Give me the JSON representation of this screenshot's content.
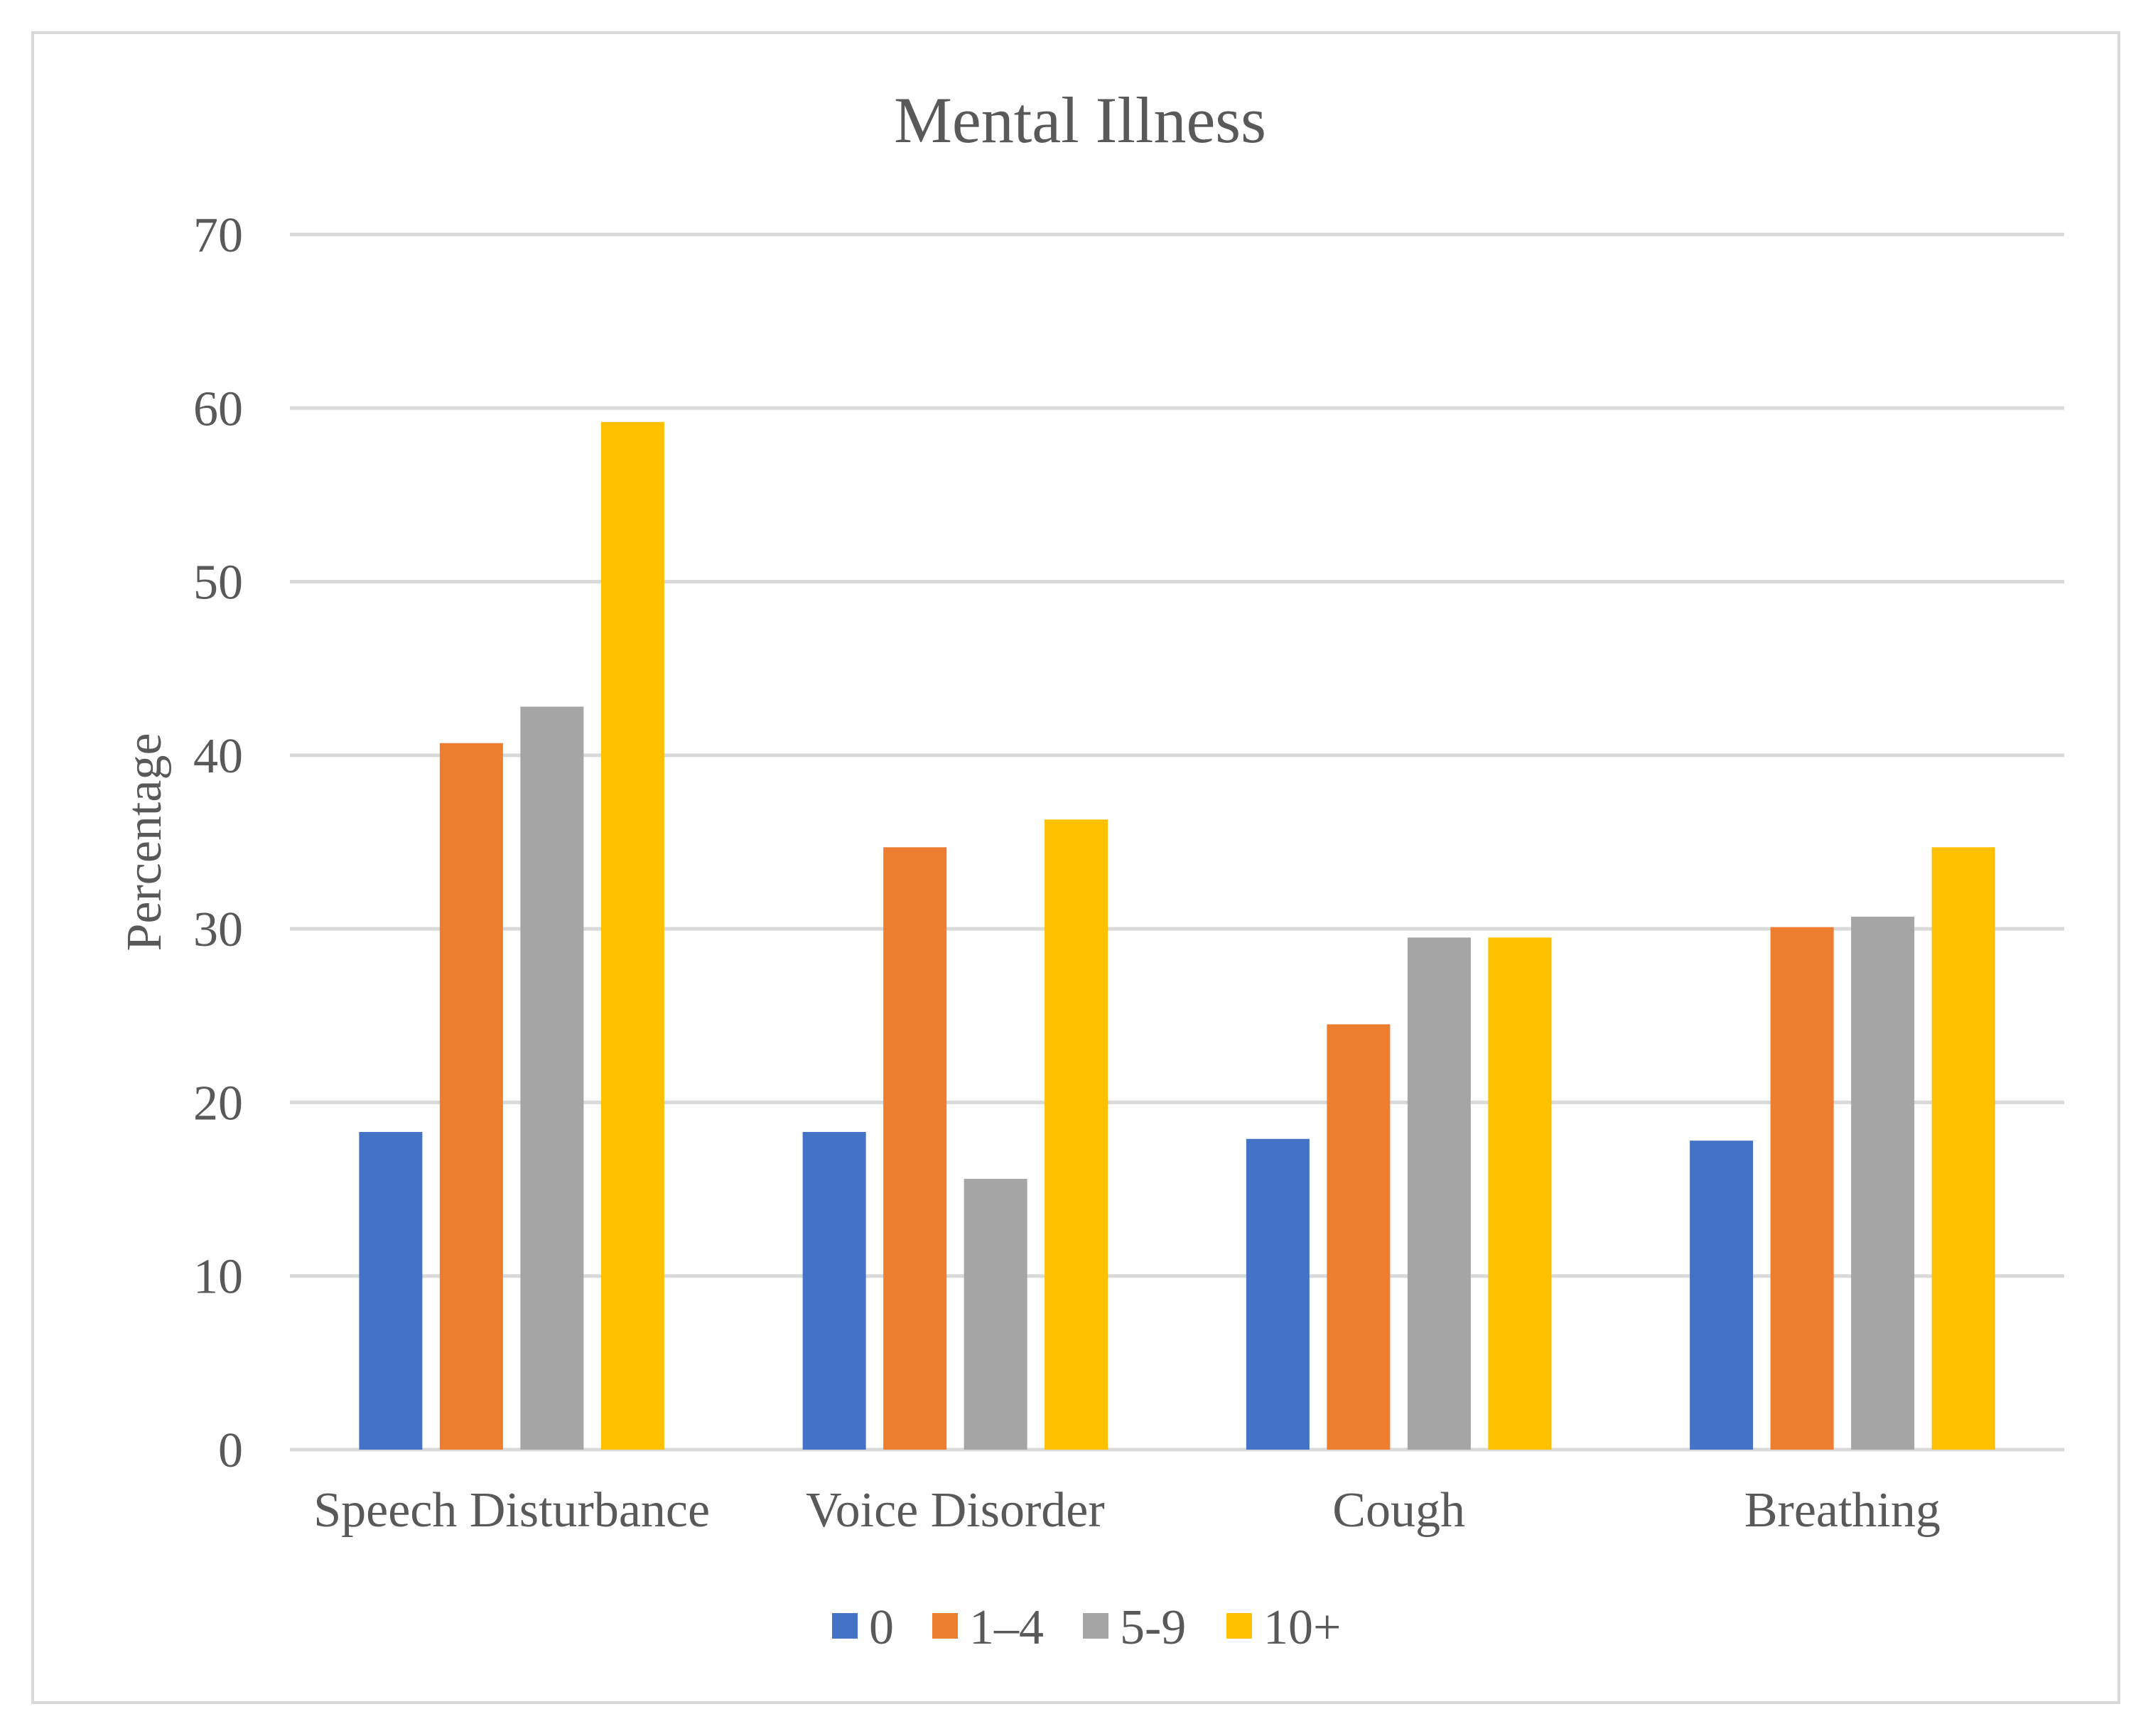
{
  "chart_data": {
    "type": "bar",
    "title": "Mental Illness",
    "xlabel": "",
    "ylabel": "Percentage",
    "ylim": [
      0,
      70
    ],
    "yticks": [
      0,
      10,
      20,
      30,
      40,
      50,
      60,
      70
    ],
    "grid": true,
    "legend_position": "bottom",
    "categories": [
      "Speech Disturbance",
      "Voice Disorder",
      "Cough",
      "Breathing"
    ],
    "series": [
      {
        "name": "0",
        "color": "#4472c4",
        "values": [
          18.3,
          18.3,
          17.9,
          17.8
        ]
      },
      {
        "name": "1–4",
        "color": "#ed7d31",
        "values": [
          40.7,
          34.7,
          24.5,
          30.1
        ]
      },
      {
        "name": "5-9",
        "color": "#a5a5a5",
        "values": [
          42.8,
          15.6,
          29.5,
          30.7
        ]
      },
      {
        "name": "10+",
        "color": "#ffc000",
        "values": [
          59.2,
          36.3,
          29.5,
          34.7
        ]
      }
    ]
  }
}
